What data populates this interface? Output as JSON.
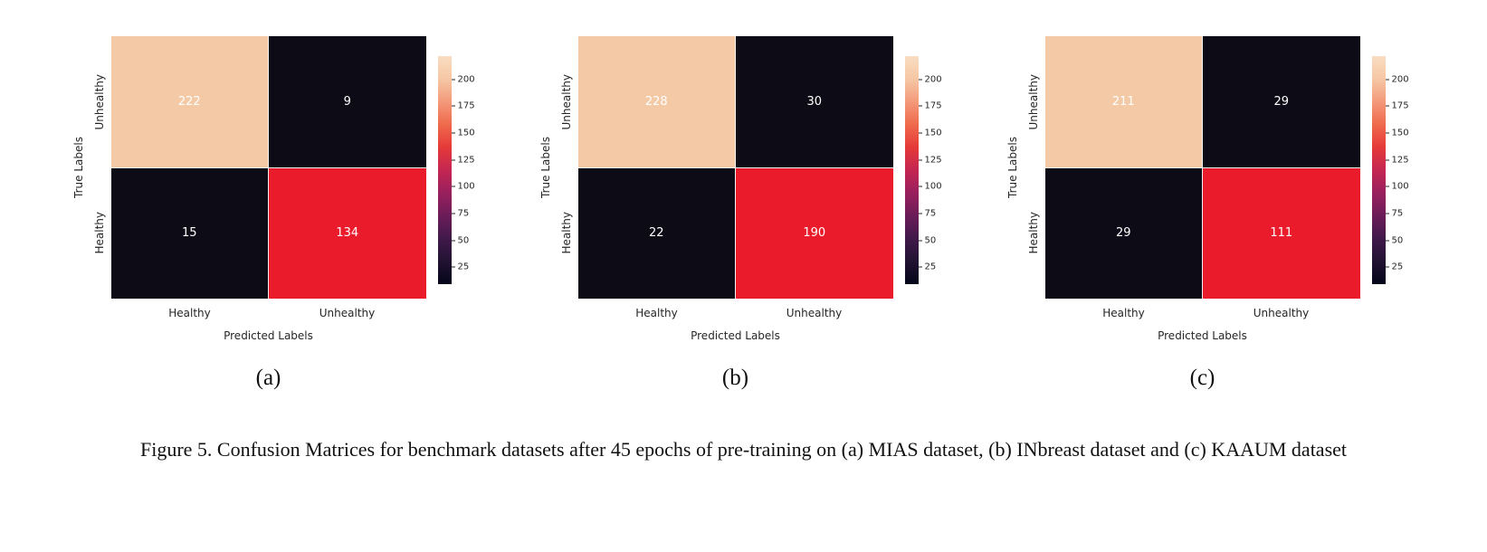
{
  "figure": {
    "caption": "Figure 5. Confusion Matrices for benchmark datasets after 45 epochs of pre-training on (a) MIAS dataset, (b) INbreast dataset and (c) KAAUM dataset"
  },
  "axis": {
    "x_label": "Predicted Labels",
    "y_label": "True Labels",
    "x_ticks": [
      "Healthy",
      "Unhealthy"
    ],
    "y_ticks": [
      "Unhealthy",
      "Healthy"
    ]
  },
  "colorbar": {
    "tick_values": [
      200,
      175,
      150,
      125,
      100,
      75,
      50,
      25
    ],
    "colormap_stops": [
      "#03051a",
      "#221232",
      "#41194a",
      "#6b1c58",
      "#99205e",
      "#c42651",
      "#e53a39",
      "#ef6a4c",
      "#f39a7a",
      "#f6c7a4",
      "#f9ddc2"
    ]
  },
  "colors": {
    "cell_high_peach": "#f4c9a6",
    "cell_low_black": "#0d0b16",
    "cell_mid_red": "#ea1c2c",
    "annotation_text": "#ffffff"
  },
  "chart_data": [
    {
      "type": "heatmap",
      "panel": "(a)",
      "dataset": "MIAS",
      "xlabel": "Predicted Labels",
      "ylabel": "True Labels",
      "x_categories": [
        "Healthy",
        "Unhealthy"
      ],
      "y_categories": [
        "Unhealthy",
        "Healthy"
      ],
      "matrix": [
        [
          222,
          9
        ],
        [
          15,
          134
        ]
      ],
      "cell_colors": [
        [
          "#f4c9a6",
          "#0d0b16"
        ],
        [
          "#0d0b16",
          "#ea1c2c"
        ]
      ],
      "colorbar_ticks": [
        200,
        175,
        150,
        125,
        100,
        75,
        50,
        25
      ],
      "legend_position": "right-colorbar",
      "grid": false
    },
    {
      "type": "heatmap",
      "panel": "(b)",
      "dataset": "INbreast",
      "xlabel": "Predicted Labels",
      "ylabel": "True Labels",
      "x_categories": [
        "Healthy",
        "Unhealthy"
      ],
      "y_categories": [
        "Unhealthy",
        "Healthy"
      ],
      "matrix": [
        [
          228,
          30
        ],
        [
          22,
          190
        ]
      ],
      "cell_colors": [
        [
          "#f4c9a6",
          "#0d0b16"
        ],
        [
          "#0d0b16",
          "#ea1c2c"
        ]
      ],
      "colorbar_ticks": [
        200,
        175,
        150,
        125,
        100,
        75,
        50,
        25
      ],
      "legend_position": "right-colorbar",
      "grid": false
    },
    {
      "type": "heatmap",
      "panel": "(c)",
      "dataset": "KAAUM",
      "xlabel": "Predicted Labels",
      "ylabel": "True Labels",
      "x_categories": [
        "Healthy",
        "Unhealthy"
      ],
      "y_categories": [
        "Unhealthy",
        "Healthy"
      ],
      "matrix": [
        [
          211,
          29
        ],
        [
          29,
          111
        ]
      ],
      "cell_colors": [
        [
          "#f4c9a6",
          "#0d0b16"
        ],
        [
          "#0d0b16",
          "#ea1c2c"
        ]
      ],
      "colorbar_ticks": [
        200,
        175,
        150,
        125,
        100,
        75,
        50,
        25
      ],
      "legend_position": "right-colorbar",
      "grid": false
    }
  ]
}
